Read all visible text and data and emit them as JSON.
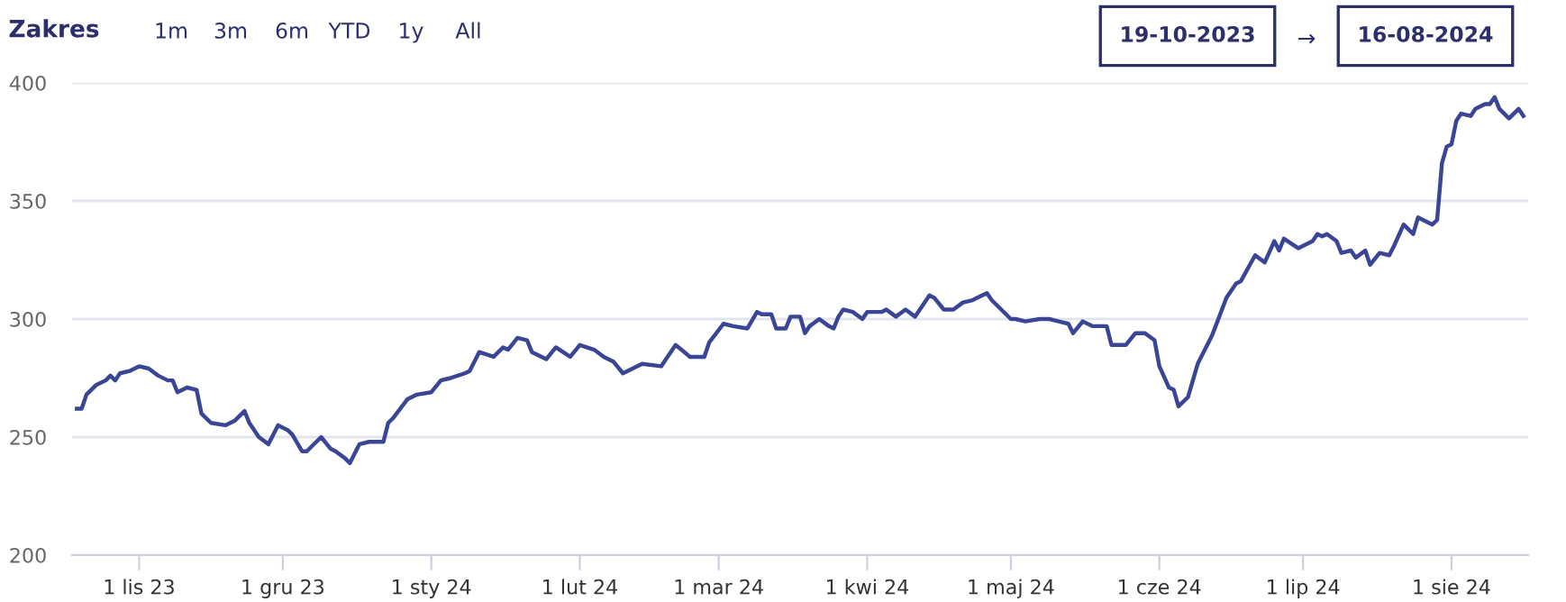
{
  "chart_data": {
    "type": "line",
    "annotations": [
      "Zakres",
      "1m",
      "3m",
      "6m",
      "YTD",
      "1y",
      "All",
      "19-10-2023",
      "→",
      "16-08-2024"
    ],
    "x": [
      "2023-10-19",
      "2023-10-20",
      "2023-10-21",
      "2023-10-23",
      "2023-10-25",
      "2023-10-26",
      "2023-10-27",
      "2023-10-28",
      "2023-10-30",
      "2023-11-01",
      "2023-11-03",
      "2023-11-05",
      "2023-11-07",
      "2023-11-08",
      "2023-11-09",
      "2023-11-11",
      "2023-11-13",
      "2023-11-14",
      "2023-11-16",
      "2023-11-19",
      "2023-11-21",
      "2023-11-23",
      "2023-11-24",
      "2023-11-26",
      "2023-11-28",
      "2023-11-30",
      "2023-12-02",
      "2023-12-03",
      "2023-12-05",
      "2023-12-06",
      "2023-12-09",
      "2023-12-11",
      "2023-12-12",
      "2023-12-14",
      "2023-12-15",
      "2023-12-17",
      "2023-12-19",
      "2023-12-22",
      "2023-12-23",
      "2023-12-24",
      "2023-12-27",
      "2023-12-29",
      "2024-01-01",
      "2024-01-03",
      "2024-01-05",
      "2024-01-08",
      "2024-01-09",
      "2024-01-11",
      "2024-01-14",
      "2024-01-16",
      "2024-01-17",
      "2024-01-19",
      "2024-01-21",
      "2024-01-22",
      "2024-01-25",
      "2024-01-27",
      "2024-01-30",
      "2024-02-01",
      "2024-02-04",
      "2024-02-06",
      "2024-02-08",
      "2024-02-10",
      "2024-02-12",
      "2024-02-14",
      "2024-02-18",
      "2024-02-19",
      "2024-02-21",
      "2024-02-24",
      "2024-02-27",
      "2024-02-28",
      "2024-03-02",
      "2024-03-04",
      "2024-03-07",
      "2024-03-09",
      "2024-03-10",
      "2024-03-12",
      "2024-03-13",
      "2024-03-15",
      "2024-03-16",
      "2024-03-18",
      "2024-03-19",
      "2024-03-20",
      "2024-03-22",
      "2024-03-24",
      "2024-03-25",
      "2024-03-26",
      "2024-03-27",
      "2024-03-29",
      "2024-03-31",
      "2024-04-01",
      "2024-04-04",
      "2024-04-05",
      "2024-04-07",
      "2024-04-09",
      "2024-04-11",
      "2024-04-14",
      "2024-04-15",
      "2024-04-17",
      "2024-04-19",
      "2024-04-21",
      "2024-04-23",
      "2024-04-25",
      "2024-04-26",
      "2024-04-27",
      "2024-05-01",
      "2024-05-02",
      "2024-05-04",
      "2024-05-07",
      "2024-05-09",
      "2024-05-11",
      "2024-05-13",
      "2024-05-14",
      "2024-05-16",
      "2024-05-18",
      "2024-05-21",
      "2024-05-22",
      "2024-05-25",
      "2024-05-27",
      "2024-05-29",
      "2024-05-31",
      "2024-06-01",
      "2024-06-03",
      "2024-06-04",
      "2024-06-05",
      "2024-06-07",
      "2024-06-09",
      "2024-06-12",
      "2024-06-15",
      "2024-06-17",
      "2024-06-18",
      "2024-06-21",
      "2024-06-23",
      "2024-06-25",
      "2024-06-26",
      "2024-06-27",
      "2024-06-30",
      "2024-07-03",
      "2024-07-04",
      "2024-07-05",
      "2024-07-06",
      "2024-07-08",
      "2024-07-09",
      "2024-07-11",
      "2024-07-12",
      "2024-07-14",
      "2024-07-15",
      "2024-07-17",
      "2024-07-19",
      "2024-07-20",
      "2024-07-22",
      "2024-07-24",
      "2024-07-25",
      "2024-07-28",
      "2024-07-29",
      "2024-07-30",
      "2024-07-31",
      "2024-08-01",
      "2024-08-02",
      "2024-08-03",
      "2024-08-05",
      "2024-08-06",
      "2024-08-08",
      "2024-08-09",
      "2024-08-10",
      "2024-08-11",
      "2024-08-13",
      "2024-08-15",
      "2024-08-16"
    ],
    "series": [
      {
        "color": "#3a4595",
        "values": [
          262,
          262,
          268,
          272,
          274,
          276,
          274,
          277,
          278,
          280,
          279,
          276,
          274,
          274,
          269,
          271,
          270,
          260,
          256,
          255,
          257,
          261,
          256,
          250,
          247,
          255,
          253,
          251,
          244,
          244,
          250,
          245,
          244,
          241,
          239,
          247,
          248,
          248,
          256,
          258,
          266,
          268,
          269,
          274,
          275,
          277,
          278,
          286,
          284,
          288,
          287,
          292,
          291,
          286,
          283,
          288,
          284,
          289,
          287,
          284,
          282,
          277,
          279,
          281,
          280,
          283,
          289,
          284,
          284,
          290,
          298,
          297,
          296,
          303,
          302,
          302,
          296,
          296,
          301,
          301,
          294,
          297,
          300,
          297,
          296,
          301,
          304,
          303,
          300,
          303,
          303,
          304,
          301,
          304,
          301,
          310,
          309,
          304,
          304,
          307,
          308,
          310,
          311,
          308,
          300,
          300,
          299,
          300,
          300,
          299,
          298,
          294,
          299,
          297,
          297,
          289,
          289,
          294,
          294,
          291,
          280,
          271,
          270,
          263,
          267,
          281,
          293,
          309,
          315,
          316,
          327,
          324,
          333,
          329,
          334,
          330,
          333,
          336,
          335,
          336,
          333,
          328,
          329,
          326,
          329,
          323,
          328,
          327,
          331,
          340,
          336,
          343,
          340,
          342,
          366,
          373,
          374,
          384,
          387,
          386,
          389,
          391,
          391,
          394,
          389,
          385,
          389,
          386
        ]
      }
    ],
    "xlim": [
      "2023-10-18",
      "2024-08-17"
    ],
    "xticks": [
      {
        "value": "2023-11-01",
        "label": "1 lis 23"
      },
      {
        "value": "2023-12-01",
        "label": "1 gru 23"
      },
      {
        "value": "2024-01-01",
        "label": "1 sty 24"
      },
      {
        "value": "2024-02-01",
        "label": "1 lut 24"
      },
      {
        "value": "2024-03-01",
        "label": "1 mar 24"
      },
      {
        "value": "2024-04-01",
        "label": "1 kwi 24"
      },
      {
        "value": "2024-05-01",
        "label": "1 maj 24"
      },
      {
        "value": "2024-06-01",
        "label": "1 cze 24"
      },
      {
        "value": "2024-07-01",
        "label": "1 lip 24"
      },
      {
        "value": "2024-08-01",
        "label": "1 sie 24"
      }
    ],
    "ylim": [
      200,
      400
    ],
    "yticks": [
      200,
      250,
      300,
      350,
      400
    ],
    "grid": "y",
    "legend": false,
    "marker": "none",
    "line_style": "solid"
  }
}
